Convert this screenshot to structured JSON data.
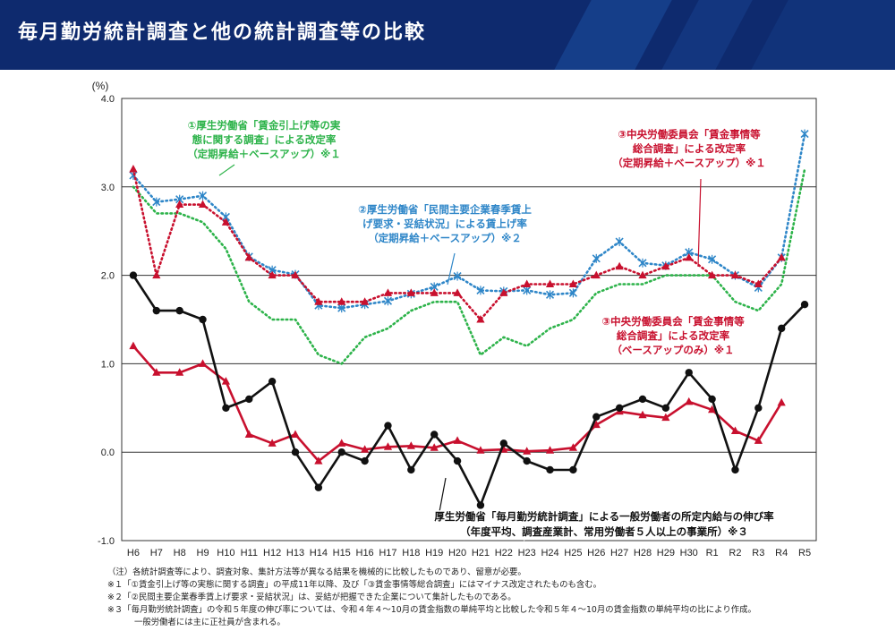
{
  "header": {
    "title": "毎月勤労統計調査と他の統計調査等の比較"
  },
  "chart_data": {
    "type": "line",
    "unit_label": "(%)",
    "ylim": [
      -1.0,
      4.0
    ],
    "yticks": [
      "4.0",
      "3.0",
      "2.0",
      "1.0",
      "0.0",
      "-1.0"
    ],
    "categories": [
      "H6",
      "H7",
      "H8",
      "H9",
      "H10",
      "H11",
      "H12",
      "H13",
      "H14",
      "H15",
      "H16",
      "H17",
      "H18",
      "H19",
      "H20",
      "H21",
      "H22",
      "H23",
      "H24",
      "H25",
      "H26",
      "H27",
      "H28",
      "H29",
      "H30",
      "R1",
      "R2",
      "R3",
      "R4",
      "R5"
    ],
    "grid": "horizontal",
    "series": [
      {
        "key": "kosei_hikiage",
        "color": "#2db34a",
        "style": "dotted",
        "marker": "none",
        "values": [
          3.0,
          2.7,
          2.7,
          2.6,
          2.3,
          1.7,
          1.5,
          1.5,
          1.1,
          1.0,
          1.3,
          1.4,
          1.6,
          1.7,
          1.7,
          1.1,
          1.3,
          1.2,
          1.4,
          1.5,
          1.8,
          1.9,
          1.9,
          2.0,
          2.0,
          2.0,
          1.7,
          1.6,
          1.9,
          3.2
        ]
      },
      {
        "key": "kosei_shunki",
        "color": "#2e86c8",
        "style": "dotted",
        "marker": "x",
        "values": [
          3.13,
          2.83,
          2.86,
          2.9,
          2.66,
          2.21,
          2.06,
          2.01,
          1.66,
          1.63,
          1.67,
          1.71,
          1.79,
          1.87,
          1.99,
          1.83,
          1.82,
          1.83,
          1.78,
          1.8,
          2.19,
          2.38,
          2.14,
          2.11,
          2.26,
          2.18,
          2.0,
          1.86,
          2.2,
          3.6
        ]
      },
      {
        "key": "chuo_teiki",
        "color": "#c8102e",
        "style": "dotted",
        "marker": "triangle",
        "values": [
          3.2,
          2.0,
          2.8,
          2.8,
          2.6,
          2.2,
          2.0,
          2.0,
          1.7,
          1.7,
          1.7,
          1.8,
          1.8,
          1.8,
          1.8,
          1.5,
          1.8,
          1.9,
          1.9,
          1.9,
          2.0,
          2.1,
          2.0,
          2.1,
          2.2,
          2.0,
          2.0,
          1.9,
          2.2,
          null
        ]
      },
      {
        "key": "chuo_base",
        "color": "#c8102e",
        "style": "solid",
        "marker": "triangle",
        "values": [
          1.2,
          0.9,
          0.9,
          1.0,
          0.8,
          0.2,
          0.1,
          0.2,
          -0.1,
          0.1,
          0.03,
          0.06,
          0.07,
          0.05,
          0.13,
          0.02,
          0.03,
          0.01,
          0.02,
          0.05,
          0.31,
          0.46,
          0.42,
          0.39,
          0.57,
          0.48,
          0.24,
          0.13,
          0.56,
          null
        ]
      },
      {
        "key": "maitsuki",
        "color": "#111111",
        "style": "solid",
        "marker": "circle",
        "values": [
          2.0,
          1.6,
          1.6,
          1.5,
          0.5,
          0.6,
          0.8,
          0.0,
          -0.4,
          0.0,
          -0.1,
          0.3,
          -0.2,
          0.2,
          -0.1,
          -0.6,
          0.1,
          -0.1,
          -0.2,
          -0.2,
          0.4,
          0.5,
          0.6,
          0.5,
          0.9,
          0.6,
          -0.2,
          0.5,
          1.4,
          1.67
        ]
      }
    ],
    "annotations": [
      {
        "series": "kosei_hikiage",
        "color": "#2db34a",
        "lines": [
          "①厚生労働省「賃金引上げ等の実",
          "態に関する調査」による改定率",
          "（定期昇給＋ベースアップ）※１"
        ]
      },
      {
        "series": "kosei_shunki",
        "color": "#2e86c8",
        "lines": [
          "②厚生労働省「民間主要企業春季賃上",
          "げ要求・妥結状況」による賃上げ率",
          "（定期昇給＋ベースアップ）※２"
        ]
      },
      {
        "series": "chuo_teiki",
        "color": "#c8102e",
        "lines": [
          "③中央労働委員会「賃金事情等",
          "総合調査」による改定率",
          "（定期昇給＋ベースアップ）※１"
        ]
      },
      {
        "series": "chuo_base",
        "color": "#c8102e",
        "lines": [
          "③中央労働委員会「賃金事情等",
          "総合調査」による改定率",
          "（ベースアップのみ）※１"
        ]
      },
      {
        "series": "maitsuki",
        "color": "#111111",
        "lines": [
          "厚生労働省「毎月勤労統計調査」による一般労働者の所定内給与の伸び率",
          "（年度平均、調査産業計、常用労働者５人以上の事業所）※３"
        ]
      }
    ]
  },
  "notes": [
    "（注）各統計調査等により、調査対象、集計方法等が異なる結果を機械的に比較したものであり、留意が必要。",
    "※１「①賃金引上げ等の実態に関する調査」の平成11年以降、及び「③賃金事情等総合調査」にはマイナス改定されたものも含む。",
    "※２「②民間主要企業春季賃上げ要求・妥結状況」は、妥結が把握できた企業について集計したものである。",
    "※３「毎月勤労統計調査」の令和５年度の伸び率については、令和４年４～10月の賃金指数の単純平均と比較した令和５年４～10月の賃金指数の単純平均の比により作成。",
    "一般労働者には主に正社員が含まれる。"
  ]
}
